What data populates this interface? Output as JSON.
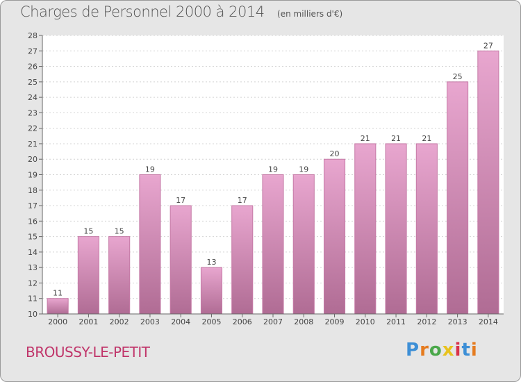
{
  "title": "Charges de Personnel 2000 à 2014",
  "subtitle": "(en milliers d'€)",
  "commune": "BROUSSY-LE-PETIT",
  "brand": {
    "text": "Proxiti",
    "letter_colors": [
      "#3d8fd6",
      "#e57b1f",
      "#4aa84a",
      "#e8c21d",
      "#d9324a",
      "#3d8fd6",
      "#e57b1f"
    ]
  },
  "chart_data": {
    "type": "bar",
    "categories": [
      "2000",
      "2001",
      "2002",
      "2003",
      "2004",
      "2005",
      "2006",
      "2007",
      "2008",
      "2009",
      "2010",
      "2011",
      "2012",
      "2013",
      "2014"
    ],
    "values": [
      11,
      15,
      15,
      19,
      17,
      13,
      17,
      19,
      19,
      20,
      21,
      21,
      21,
      25,
      27
    ],
    "ylim": [
      10,
      28
    ],
    "yticks": [
      10,
      11,
      12,
      13,
      14,
      15,
      16,
      17,
      18,
      19,
      20,
      21,
      22,
      23,
      24,
      25,
      26,
      27,
      28
    ],
    "grid": true,
    "colors": {
      "bar_top": "#e8a6cf",
      "bar_bottom": "#b06c94",
      "bar_edge": "#c57aa6"
    }
  }
}
